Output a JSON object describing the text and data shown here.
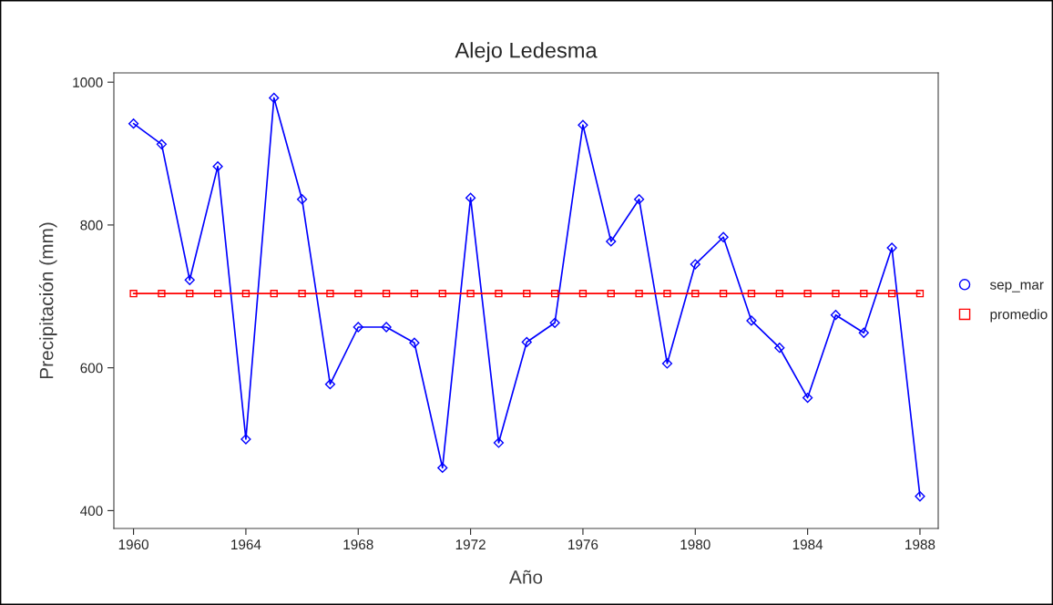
{
  "chart_data": {
    "type": "line",
    "title": "Alejo Ledesma",
    "xlabel": "Año",
    "ylabel": "Precipitación (mm)",
    "x": [
      1960,
      1961,
      1962,
      1963,
      1964,
      1965,
      1966,
      1967,
      1968,
      1969,
      1970,
      1971,
      1972,
      1973,
      1974,
      1975,
      1976,
      1977,
      1978,
      1979,
      1980,
      1981,
      1982,
      1983,
      1984,
      1985,
      1986,
      1987,
      1988
    ],
    "series": [
      {
        "name": "sep_mar",
        "color": "#0000ff",
        "marker": "diamond",
        "values": [
          942,
          913,
          723,
          882,
          500,
          978,
          836,
          577,
          657,
          657,
          635,
          460,
          838,
          495,
          636,
          663,
          940,
          777,
          836,
          606,
          745,
          783,
          666,
          628,
          558,
          674,
          649,
          768,
          420
        ]
      },
      {
        "name": "promedio",
        "color": "#ff0000",
        "marker": "square",
        "values": [
          704,
          704,
          704,
          704,
          704,
          704,
          704,
          704,
          704,
          704,
          704,
          704,
          704,
          704,
          704,
          704,
          704,
          704,
          704,
          704,
          704,
          704,
          704,
          704,
          704,
          704,
          704,
          704,
          704
        ]
      }
    ],
    "xlim": [
      1959.3,
      1988.65
    ],
    "xticks": [
      1960,
      1964,
      1968,
      1972,
      1976,
      1980,
      1984,
      1988
    ],
    "ylim": [
      375,
      1013
    ],
    "yticks": [
      400,
      600,
      800,
      1000
    ],
    "grid": false,
    "legend": "right",
    "line_style": "solid"
  }
}
